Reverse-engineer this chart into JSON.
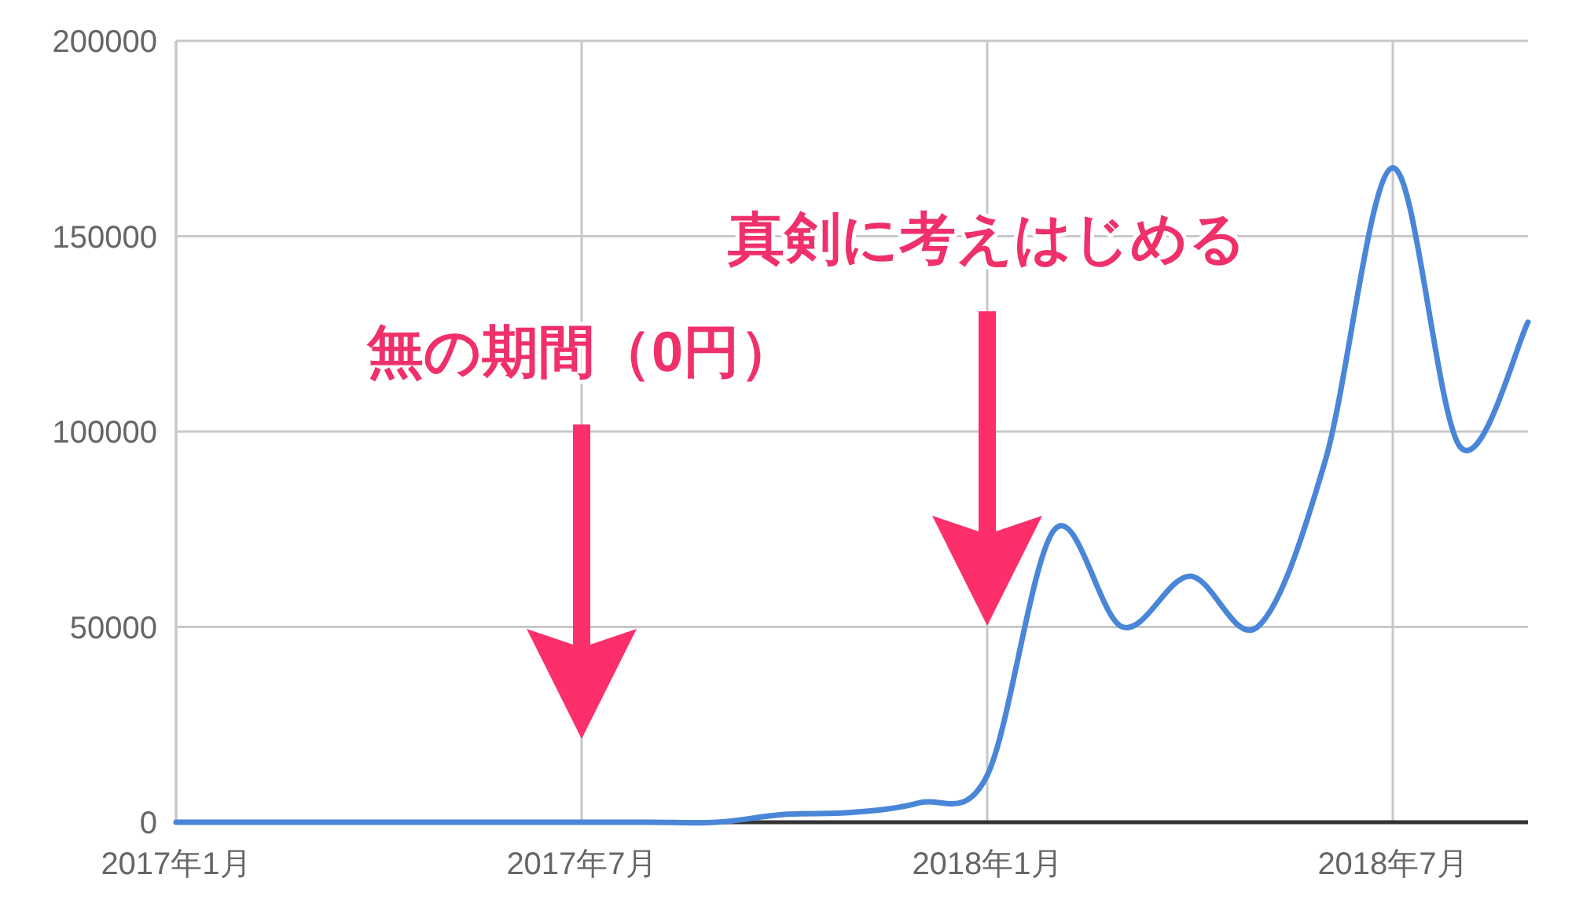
{
  "chart_data": {
    "type": "line",
    "x": [
      "2017-01",
      "2017-02",
      "2017-03",
      "2017-04",
      "2017-05",
      "2017-06",
      "2017-07",
      "2017-08",
      "2017-09",
      "2017-10",
      "2017-11",
      "2017-12",
      "2018-01",
      "2018-02",
      "2018-03",
      "2018-04",
      "2018-05",
      "2018-06",
      "2018-07",
      "2018-08",
      "2018-09"
    ],
    "series": [
      {
        "color": "#4a86d8",
        "values": [
          0,
          0,
          0,
          0,
          0,
          0,
          0,
          0,
          0,
          2000,
          2500,
          5000,
          12000,
          75000,
          50000,
          63000,
          50000,
          92500,
          167500,
          96000,
          128000
        ]
      }
    ],
    "xlim": [
      "2017-01",
      "2018-09"
    ],
    "xticks": [
      {
        "value": "2017-01",
        "label": "2017年1月"
      },
      {
        "value": "2017-07",
        "label": "2017年7月"
      },
      {
        "value": "2018-01",
        "label": "2018年1月"
      },
      {
        "value": "2018-07",
        "label": "2018年7月"
      }
    ],
    "ylim": [
      0,
      200000
    ],
    "yticks": [
      0,
      50000,
      100000,
      150000,
      200000
    ],
    "grid": true,
    "annotations": [
      "無の期間（0円）",
      "真剣に考えはじめる"
    ]
  }
}
